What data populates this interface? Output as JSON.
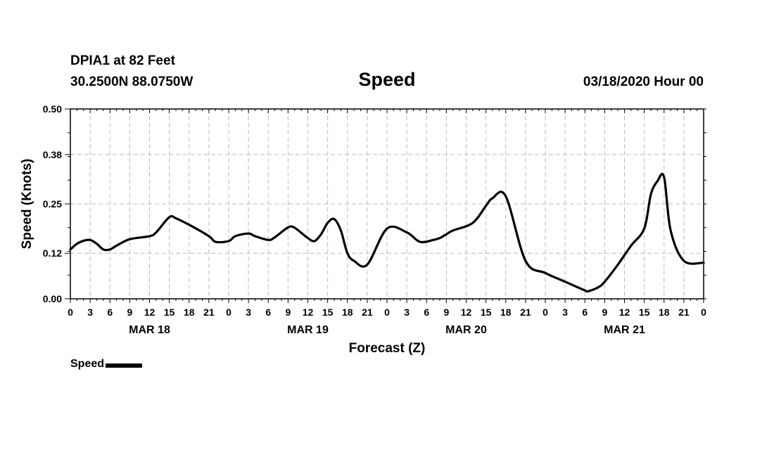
{
  "header": {
    "station": "DPIA1 at 82 Feet",
    "coords": "30.2500N 88.0750W",
    "timestamp": "03/18/2020 Hour 00"
  },
  "chart_data": {
    "type": "line",
    "title": "Speed",
    "xlabel": "Forecast (Z)",
    "ylabel": "Speed (Knots)",
    "ylim": [
      0,
      0.5
    ],
    "yticks": [
      "0.00",
      "0.12",
      "0.25",
      "0.38",
      "0.50"
    ],
    "xlim": [
      0,
      96
    ],
    "x_ticks_hours": [
      0,
      3,
      6,
      9,
      12,
      15,
      18,
      21,
      24,
      27,
      30,
      33,
      36,
      39,
      42,
      45,
      48,
      51,
      54,
      57,
      60,
      63,
      66,
      69,
      72,
      75,
      78,
      81,
      84,
      87,
      90,
      93,
      96
    ],
    "x_tick_labels": [
      "0",
      "3",
      "6",
      "9",
      "12",
      "15",
      "18",
      "21",
      "0",
      "3",
      "6",
      "9",
      "12",
      "15",
      "18",
      "21",
      "0",
      "3",
      "6",
      "9",
      "12",
      "15",
      "18",
      "21",
      "0",
      "3",
      "6",
      "9",
      "12",
      "15",
      "18",
      "21",
      "0"
    ],
    "date_labels": [
      {
        "label": "MAR 18",
        "hour": 12
      },
      {
        "label": "MAR 19",
        "hour": 36
      },
      {
        "label": "MAR 20",
        "hour": 60
      },
      {
        "label": "MAR 21",
        "hour": 84
      }
    ],
    "grid": true,
    "legend_position": "bottom-left",
    "series": [
      {
        "name": "Speed",
        "color": "#000000",
        "x": [
          0,
          1,
          2,
          3,
          4,
          5,
          6,
          7,
          9,
          12,
          13,
          15,
          16,
          18,
          21,
          22,
          24,
          25,
          27,
          28,
          30,
          31,
          33,
          34,
          36,
          37,
          38,
          39,
          40,
          41,
          42,
          43,
          45,
          48,
          51,
          53,
          55,
          56,
          57,
          58,
          61,
          63,
          64,
          66,
          69,
          72,
          75,
          78,
          78.5,
          80,
          81,
          83,
          85,
          87,
          88,
          89,
          90,
          91,
          93,
          96
        ],
        "y": [
          0.13,
          0.145,
          0.153,
          0.155,
          0.145,
          0.13,
          0.13,
          0.14,
          0.157,
          0.165,
          0.175,
          0.215,
          0.212,
          0.195,
          0.165,
          0.15,
          0.152,
          0.165,
          0.172,
          0.165,
          0.155,
          0.162,
          0.188,
          0.187,
          0.16,
          0.152,
          0.17,
          0.2,
          0.21,
          0.18,
          0.12,
          0.1,
          0.09,
          0.185,
          0.175,
          0.15,
          0.155,
          0.16,
          0.17,
          0.18,
          0.2,
          0.245,
          0.265,
          0.27,
          0.1,
          0.068,
          0.045,
          0.022,
          0.02,
          0.03,
          0.045,
          0.09,
          0.14,
          0.185,
          0.275,
          0.31,
          0.32,
          0.18,
          0.1,
          0.095
        ]
      }
    ]
  },
  "legend": {
    "label": "Speed"
  },
  "colors": {
    "line": "#000000",
    "grid": "#bbbbbb",
    "background": "#ffffff"
  }
}
